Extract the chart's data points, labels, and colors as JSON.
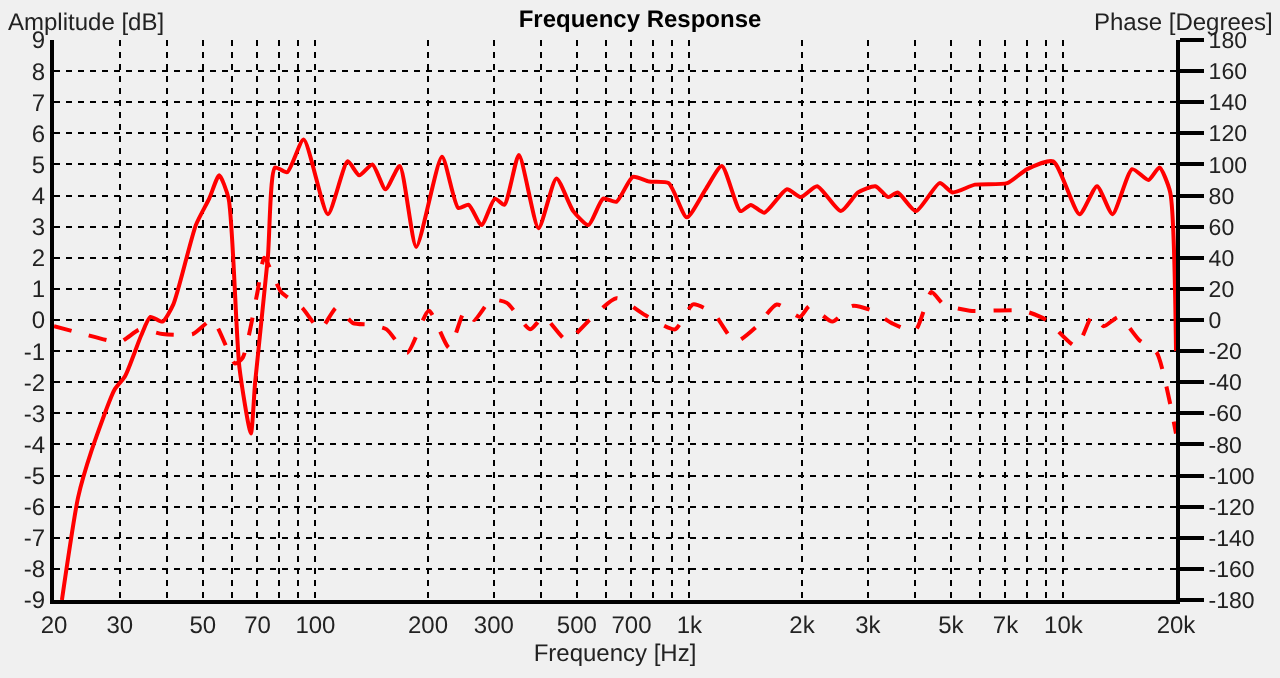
{
  "chart_data": {
    "type": "line",
    "title": "Frequency Response",
    "xlabel": "Frequency [Hz]",
    "ylabel": "Amplitude [dB]",
    "y2label": "Phase [Degrees]",
    "log": "x",
    "grid": true,
    "marker": "none",
    "xlim": [
      20,
      20000
    ],
    "xticks": [
      20,
      30,
      {
        "value": 40,
        "label": null
      },
      50,
      {
        "value": 60,
        "label": null
      },
      70,
      {
        "value": 80,
        "label": null
      },
      {
        "value": 90,
        "label": null
      },
      100,
      200,
      300,
      {
        "value": 400,
        "label": null
      },
      500,
      {
        "value": 600,
        "label": null
      },
      700,
      {
        "value": 800,
        "label": null
      },
      {
        "value": 900,
        "label": null
      },
      {
        "value": 1000,
        "label": "1k"
      },
      {
        "value": 2000,
        "label": "2k"
      },
      {
        "value": 3000,
        "label": "3k"
      },
      {
        "value": 4000,
        "label": null
      },
      {
        "value": 5000,
        "label": "5k"
      },
      {
        "value": 6000,
        "label": null
      },
      {
        "value": 7000,
        "label": "7k"
      },
      {
        "value": 8000,
        "label": null
      },
      {
        "value": 9000,
        "label": null
      },
      {
        "value": 10000,
        "label": "10k"
      },
      {
        "value": 20000,
        "label": "20k"
      }
    ],
    "ylim": [
      -9,
      9
    ],
    "yticks": [
      -9,
      -8,
      -7,
      -6,
      -5,
      -4,
      -3,
      -2,
      -1,
      0,
      1,
      2,
      3,
      4,
      5,
      6,
      7,
      8,
      9
    ],
    "y2lim": [
      -180,
      180
    ],
    "y2ticks": [
      -180,
      -160,
      -140,
      -120,
      -100,
      -80,
      -60,
      -40,
      -20,
      0,
      20,
      40,
      60,
      80,
      100,
      120,
      140,
      160,
      180
    ],
    "series": [
      {
        "color": "#ff0000",
        "line_style": "solid",
        "x": [
          21,
          23.2,
          25.2,
          29,
          31,
          34.2,
          36.2,
          39,
          41.7,
          47.9,
          52,
          55.3,
          58.6,
          62.6,
          67.2,
          69,
          74.6,
          78,
          84,
          93,
          108,
          122,
          131,
          142,
          154,
          168,
          186,
          218,
          241,
          257,
          278,
          302,
          320,
          350,
          395,
          441,
          489,
          537,
          588,
          638,
          706,
          781,
          880,
          984,
          1105,
          1221,
          1369,
          1459,
          1586,
          1823,
          1985,
          2195,
          2540,
          2824,
          3143,
          3398,
          3605,
          4032,
          4668,
          5053,
          5803,
          7079,
          8000,
          9392,
          11040,
          12300,
          13530,
          15270,
          16880,
          18060,
          19300,
          20000
        ],
        "values": [
          -9,
          -5.7,
          -4.2,
          -2.25,
          -1.8,
          -0.5,
          0.1,
          -0.05,
          0.5,
          3.05,
          3.9,
          4.65,
          3.9,
          -1.5,
          -3.65,
          -2,
          2,
          4.9,
          4.75,
          5.8,
          3.4,
          5.1,
          4.65,
          5,
          4.2,
          4.95,
          2.35,
          5.25,
          3.6,
          3.7,
          3.05,
          3.9,
          3.7,
          5.3,
          2.95,
          4.55,
          3.5,
          3.05,
          3.9,
          3.8,
          4.6,
          4.45,
          4.4,
          3.3,
          4.2,
          4.95,
          3.5,
          3.7,
          3.45,
          4.2,
          3.95,
          4.3,
          3.5,
          4.1,
          4.3,
          3.95,
          4.1,
          3.5,
          4.4,
          4.1,
          4.35,
          4.4,
          4.85,
          5.1,
          3.4,
          4.3,
          3.4,
          4.85,
          4.5,
          4.9,
          4.1,
          -1
        ]
      },
      {
        "color": "#ff0000",
        "line_style": "dashed",
        "axis": "y2",
        "x": [
          20,
          24,
          30,
          34,
          39,
          47,
          53,
          61,
          64,
          70,
          73,
          81,
          92,
          103,
          114,
          126,
          140,
          155,
          176,
          201,
          228,
          251,
          266,
          295,
          325,
          375,
          408,
          470,
          541,
          638,
          763,
          915,
          1023,
          1162,
          1326,
          1515,
          1712,
          1975,
          2097,
          2411,
          2723,
          3077,
          3476,
          4009,
          4436,
          4783,
          5617,
          7787,
          9006,
          10830,
          11970,
          12820,
          14080,
          15960,
          17760,
          19300,
          20000
        ],
        "values": [
          -4,
          -9,
          -14,
          -6,
          -9,
          -9,
          0,
          -28,
          -24,
          18,
          40,
          18,
          8,
          -6,
          8,
          -2,
          -3,
          -6,
          -21,
          6,
          -18,
          6,
          0,
          13,
          11,
          -6,
          2,
          -13,
          0,
          14,
          3,
          -6,
          10,
          4,
          -14,
          -4,
          10,
          2,
          9,
          -1,
          9,
          6,
          -2,
          -7,
          18,
          10,
          6,
          6,
          0,
          -17,
          3,
          -4,
          2,
          -13,
          -21,
          -54,
          -73
        ]
      }
    ]
  }
}
